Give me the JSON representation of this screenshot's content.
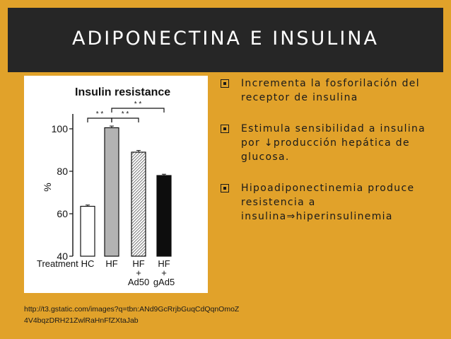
{
  "slide": {
    "title": "ADIPONECTINA E INSULINA",
    "source_url": "http://t3.gstatic.com/images?q=tbn:ANd9GcRrjbGuqCdQqnOmoZ4V4bqzDRH21ZwlRaHnFfZXtaJab",
    "bullets": [
      {
        "text": "Incrementa la fosforilación del receptor de insulina",
        "icon": "checkbox-bullet-icon"
      },
      {
        "text": "Estimula sensibilidad a insulina por ↓producción hepática de glucosa.",
        "icon": "checkbox-bullet-icon"
      },
      {
        "text": "Hipoadiponectinemia produce resistencia a insulina⇒hiperinsulinemia",
        "icon": "checkbox-bullet-icon"
      }
    ]
  },
  "chart_data": {
    "type": "bar",
    "title": "Insulin resistance",
    "ylabel": "%",
    "ylim": [
      40,
      105
    ],
    "yticks": [
      40,
      60,
      80,
      100
    ],
    "xlabel_prefix": "Treatment :",
    "categories": [
      {
        "lines": [
          "HC"
        ]
      },
      {
        "lines": [
          "HF"
        ]
      },
      {
        "lines": [
          "HF",
          "+",
          "Ad50"
        ]
      },
      {
        "lines": [
          "HF",
          "+",
          "gAd5"
        ]
      }
    ],
    "values": [
      63.5,
      100.5,
      89,
      78
    ],
    "errors": [
      0.6,
      0.8,
      0.8,
      0.6
    ],
    "bar_styles": [
      "white",
      "lightgray",
      "hatched",
      "black"
    ],
    "significance": [
      {
        "from": 0,
        "to": 1,
        "label": "* *"
      },
      {
        "from": 1,
        "to": 2,
        "label": "* *"
      },
      {
        "from": 1,
        "to": 3,
        "label": "* *"
      }
    ],
    "grid": false,
    "legend": "none"
  }
}
